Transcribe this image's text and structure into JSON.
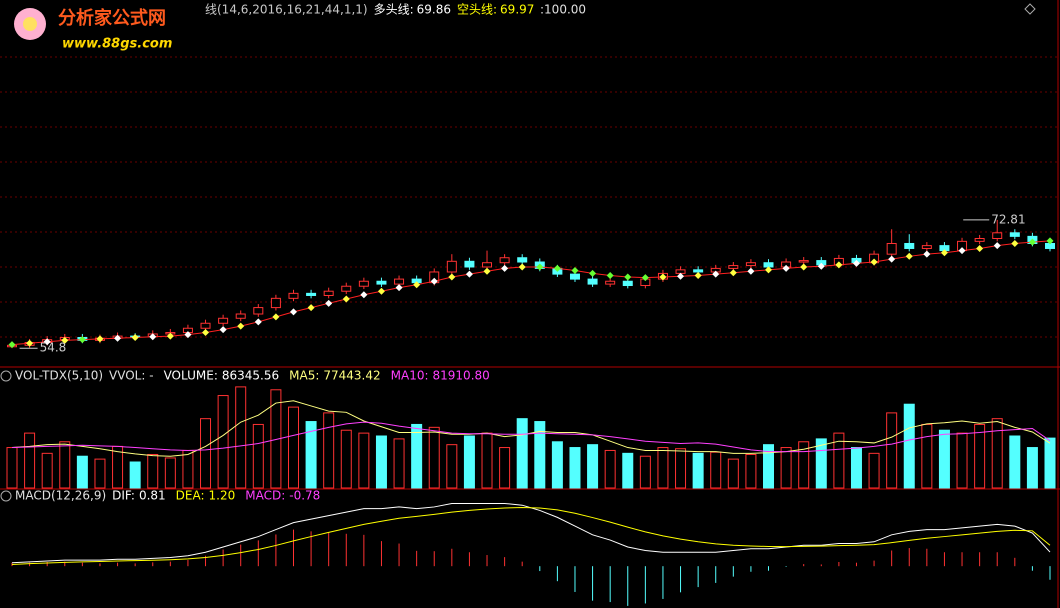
{
  "logo": {
    "name": "分析家公式网",
    "url": "www.88gs.com"
  },
  "header_right": ":100.00",
  "chart_data": [
    {
      "type": "candlestick",
      "title": "线(14,6,2016,16,21,44,1,1)",
      "up_color": "#ff3232",
      "down_color": "#54ffff",
      "ylim": [
        52.3,
        102
      ],
      "open": [
        55.0,
        55.2,
        55.6,
        56.0,
        56.3,
        55.9,
        56.2,
        56.5,
        56.4,
        56.8,
        57.0,
        57.6,
        58.3,
        59.0,
        59.6,
        60.5,
        61.8,
        62.5,
        62.2,
        62.8,
        63.5,
        64.2,
        63.8,
        64.5,
        64.0,
        65.5,
        67.0,
        66.2,
        66.8,
        67.5,
        66.9,
        66.0,
        65.2,
        64.5,
        63.8,
        64.2,
        63.6,
        64.5,
        65.3,
        65.8,
        65.5,
        66.0,
        66.4,
        66.8,
        66.2,
        66.9,
        67.1,
        66.5,
        67.4,
        66.8,
        68.0,
        69.5,
        68.8,
        69.2,
        68.5,
        69.8,
        70.2,
        71.0,
        70.5,
        69.5
      ],
      "high": [
        55.7,
        56.1,
        56.5,
        56.8,
        56.8,
        56.7,
        57.0,
        56.9,
        57.3,
        57.5,
        58.1,
        58.8,
        59.5,
        60.1,
        61.0,
        62.3,
        63.0,
        63.0,
        63.3,
        64.0,
        64.7,
        64.7,
        65.0,
        65.0,
        66.0,
        68.0,
        67.5,
        68.5,
        68.0,
        68.0,
        67.4,
        66.5,
        65.7,
        65.0,
        64.7,
        64.7,
        65.0,
        65.8,
        66.3,
        66.3,
        66.5,
        66.9,
        67.3,
        67.3,
        67.4,
        67.6,
        67.6,
        67.9,
        67.9,
        68.5,
        71.5,
        70.8,
        69.7,
        69.7,
        70.3,
        70.7,
        72.81,
        71.5,
        71.0,
        70.0
      ],
      "low": [
        54.81,
        54.8,
        55.2,
        55.6,
        55.5,
        55.5,
        55.8,
        56.0,
        56.0,
        56.4,
        56.6,
        57.2,
        57.9,
        58.6,
        59.2,
        60.1,
        61.4,
        61.8,
        61.8,
        62.4,
        63.1,
        63.4,
        63.4,
        63.6,
        63.6,
        65.1,
        65.8,
        65.8,
        66.4,
        66.5,
        65.6,
        64.8,
        64.1,
        63.4,
        63.4,
        63.2,
        63.2,
        64.1,
        64.9,
        65.1,
        65.1,
        65.6,
        66.0,
        65.8,
        65.8,
        66.5,
        66.1,
        66.1,
        66.4,
        66.4,
        67.6,
        68.4,
        68.4,
        68.1,
        68.1,
        69.4,
        69.8,
        70.1,
        69.1,
        68.4
      ],
      "close": [
        55.2,
        55.6,
        56.0,
        56.3,
        55.9,
        56.2,
        56.5,
        56.4,
        56.8,
        57.0,
        57.6,
        58.3,
        59.0,
        59.6,
        60.5,
        61.8,
        62.5,
        62.2,
        62.8,
        63.5,
        64.2,
        63.8,
        64.5,
        64.0,
        65.5,
        67.0,
        66.2,
        66.8,
        67.5,
        66.9,
        66.0,
        65.2,
        64.5,
        63.8,
        64.2,
        63.6,
        64.5,
        65.3,
        65.8,
        65.5,
        66.0,
        66.4,
        66.8,
        66.2,
        66.9,
        67.1,
        66.5,
        67.4,
        66.8,
        68.0,
        69.5,
        68.8,
        69.2,
        68.5,
        69.8,
        70.2,
        71.0,
        70.5,
        69.5,
        68.8
      ],
      "series": [
        {
          "name": "多头线:",
          "color": "#ff2020",
          "values": [
            55.3,
            55.5,
            55.7,
            55.9,
            56.0,
            56.1,
            56.2,
            56.3,
            56.4,
            56.5,
            56.7,
            57.0,
            57.4,
            57.9,
            58.5,
            59.2,
            59.9,
            60.5,
            61.1,
            61.7,
            62.3,
            62.8,
            63.3,
            63.7,
            64.2,
            64.8,
            65.2,
            65.6,
            66.0,
            66.2,
            66.2,
            66.0,
            65.7,
            65.3,
            65.0,
            64.8,
            64.7,
            64.8,
            64.9,
            65.0,
            65.2,
            65.4,
            65.6,
            65.8,
            66.0,
            66.2,
            66.3,
            66.5,
            66.7,
            66.9,
            67.3,
            67.7,
            68.0,
            68.2,
            68.5,
            68.8,
            69.2,
            69.5,
            69.7,
            69.86
          ]
        }
      ],
      "bear_line": {
        "name": "空头线:",
        "value": 69.97,
        "color": "#ffff00"
      }
    },
    {
      "type": "volume",
      "title": "VOL-TDX(5,10)",
      "note": "VVOL: -",
      "ylim": [
        0,
        180000
      ],
      "series": [
        {
          "name": "VOLUME:",
          "color": "#ffffff",
          "values": [
            70000,
            95000,
            60000,
            80000,
            55000,
            50000,
            72000,
            45000,
            58000,
            52000,
            65000,
            120000,
            160000,
            175000,
            110000,
            170000,
            140000,
            115000,
            130000,
            100000,
            95000,
            90000,
            85000,
            110000,
            105000,
            75000,
            90000,
            95000,
            70000,
            120000,
            115000,
            80000,
            70000,
            75000,
            65000,
            60000,
            55000,
            70000,
            68000,
            60000,
            62000,
            50000,
            58000,
            75000,
            70000,
            80000,
            85000,
            95000,
            70000,
            60000,
            130000,
            145000,
            110000,
            100000,
            95000,
            110000,
            120000,
            90000,
            70000,
            86345.56
          ]
        },
        {
          "name": "MA5:",
          "color": "#ffff80",
          "values": [
            70000,
            72000,
            75000,
            76000,
            72000,
            68000,
            63000,
            59000,
            56000,
            55000,
            58000,
            72000,
            91000,
            114000,
            126000,
            147000,
            151000,
            142000,
            133000,
            131000,
            116000,
            106000,
            96000,
            96000,
            97000,
            93000,
            93000,
            95000,
            89000,
            92000,
            98000,
            96000,
            96000,
            92000,
            81000,
            70000,
            65000,
            65000,
            64000,
            63000,
            63000,
            60000,
            60000,
            61000,
            63000,
            67000,
            74000,
            81000,
            80000,
            78000,
            88000,
            104000,
            111000,
            113000,
            116000,
            112000,
            115000,
            105000,
            97000,
            77443.42
          ]
        },
        {
          "name": "MA10:",
          "color": "#ff40ff",
          "values": [
            70000,
            71000,
            72000,
            73000,
            74000,
            73000,
            72000,
            70000,
            68000,
            66000,
            65000,
            66000,
            69000,
            73000,
            77000,
            84000,
            91000,
            98000,
            105000,
            111000,
            114000,
            112000,
            107000,
            103000,
            99000,
            95000,
            94000,
            94000,
            93000,
            93000,
            95000,
            94000,
            93000,
            92000,
            89000,
            85000,
            81000,
            79000,
            77000,
            78000,
            76000,
            71000,
            66000,
            63000,
            63000,
            63000,
            65000,
            67000,
            69000,
            72000,
            76000,
            83000,
            89000,
            93000,
            94000,
            96000,
            99000,
            101000,
            103000,
            81910.8
          ],
          "value_labels": [
            null,
            null,
            null,
            null,
            null,
            null,
            null,
            null,
            null,
            null,
            null,
            null,
            null,
            null,
            null,
            null,
            null,
            null,
            null,
            null,
            null,
            null,
            null,
            null,
            null,
            null,
            null,
            null,
            null,
            null,
            null,
            null,
            null,
            null,
            null,
            null,
            null,
            null,
            null,
            null,
            null,
            null,
            null,
            null,
            null,
            null,
            null,
            null,
            null,
            null,
            null,
            null,
            null,
            null,
            null,
            null,
            null,
            null,
            null,
            "81910.80"
          ]
        }
      ]
    },
    {
      "type": "macd",
      "title": "MACD(12,26,9)",
      "ylim": [
        -2.4,
        4.2
      ],
      "series": [
        {
          "name": "DIF:",
          "color": "#ffffff",
          "values": [
            0.2,
            0.25,
            0.3,
            0.35,
            0.35,
            0.35,
            0.4,
            0.4,
            0.45,
            0.5,
            0.6,
            0.8,
            1.1,
            1.4,
            1.7,
            2.1,
            2.5,
            2.7,
            2.9,
            3.1,
            3.3,
            3.3,
            3.4,
            3.3,
            3.4,
            3.6,
            3.6,
            3.6,
            3.6,
            3.5,
            3.2,
            2.8,
            2.3,
            1.8,
            1.5,
            1.1,
            0.9,
            0.8,
            0.8,
            0.8,
            0.8,
            0.9,
            1.0,
            1.0,
            1.1,
            1.2,
            1.2,
            1.3,
            1.3,
            1.4,
            1.8,
            2.0,
            2.1,
            2.1,
            2.2,
            2.3,
            2.4,
            2.3,
            1.9,
            0.81
          ]
        },
        {
          "name": "DEA:",
          "color": "#ffff00",
          "values": [
            0.1,
            0.15,
            0.18,
            0.22,
            0.25,
            0.27,
            0.3,
            0.32,
            0.34,
            0.37,
            0.42,
            0.5,
            0.62,
            0.78,
            0.96,
            1.19,
            1.45,
            1.7,
            1.94,
            2.17,
            2.4,
            2.58,
            2.75,
            2.86,
            2.97,
            3.1,
            3.2,
            3.28,
            3.34,
            3.37,
            3.34,
            3.23,
            3.04,
            2.79,
            2.53,
            2.24,
            1.97,
            1.74,
            1.55,
            1.4,
            1.28,
            1.2,
            1.16,
            1.13,
            1.12,
            1.14,
            1.15,
            1.18,
            1.2,
            1.24,
            1.35,
            1.48,
            1.6,
            1.7,
            1.8,
            1.9,
            2.0,
            2.06,
            2.03,
            1.2
          ],
          "value_labels": [
            null,
            null,
            null,
            null,
            null,
            null,
            null,
            null,
            null,
            null,
            null,
            null,
            null,
            null,
            null,
            null,
            null,
            null,
            null,
            null,
            null,
            null,
            null,
            null,
            null,
            null,
            null,
            null,
            null,
            null,
            null,
            null,
            null,
            null,
            null,
            null,
            null,
            null,
            null,
            null,
            null,
            null,
            null,
            null,
            null,
            null,
            null,
            null,
            null,
            null,
            null,
            null,
            null,
            null,
            null,
            null,
            null,
            null,
            null,
            "1.20"
          ]
        },
        {
          "name": "MACD:",
          "color": "#ff40ff",
          "values": [
            0.2,
            0.2,
            0.24,
            0.26,
            0.2,
            0.16,
            0.2,
            0.16,
            0.22,
            0.26,
            0.36,
            0.6,
            0.96,
            1.24,
            1.48,
            1.82,
            2.1,
            2.0,
            1.92,
            1.86,
            1.8,
            1.44,
            1.3,
            0.88,
            0.86,
            1.0,
            0.8,
            0.64,
            0.52,
            0.26,
            -0.28,
            -0.86,
            -1.48,
            -1.98,
            -2.06,
            -2.28,
            -2.14,
            -1.88,
            -1.5,
            -1.2,
            -0.96,
            -0.6,
            -0.32,
            -0.26,
            -0.04,
            0.12,
            0.1,
            0.24,
            0.2,
            0.32,
            0.9,
            1.04,
            1.0,
            0.8,
            0.8,
            0.8,
            0.8,
            0.48,
            -0.26,
            -0.78
          ]
        }
      ]
    }
  ]
}
